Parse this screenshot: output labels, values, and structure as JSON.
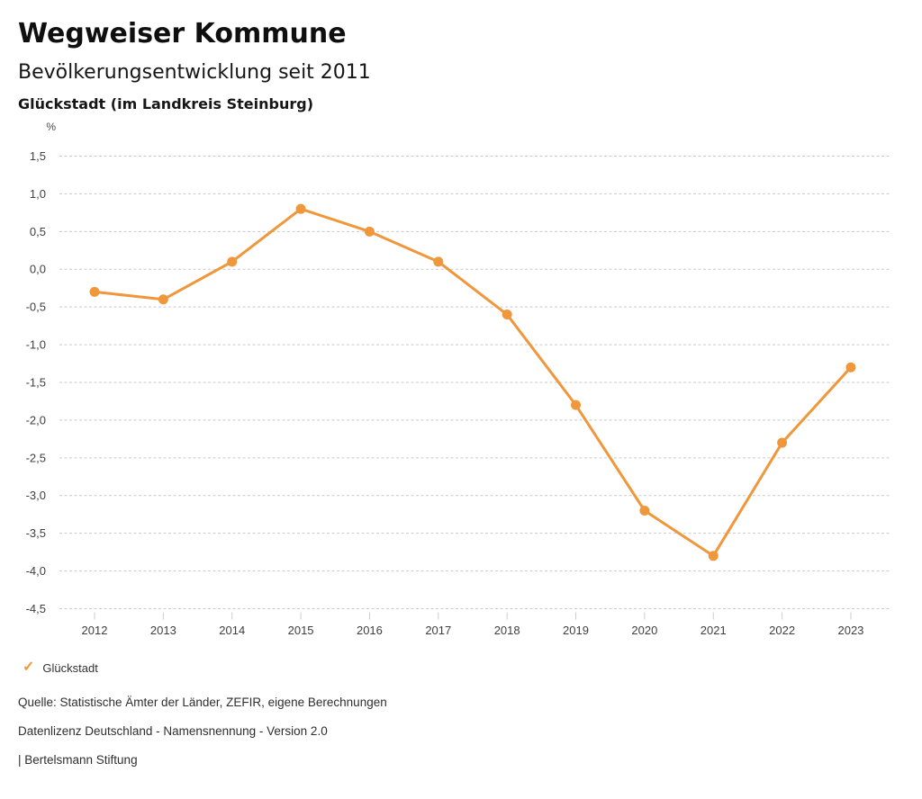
{
  "header": {
    "title": "Wegweiser Kommune",
    "subtitle": "Bevölkerungsentwicklung seit 2011",
    "location": "Glückstadt (im Landkreis Steinburg)"
  },
  "chart_data": {
    "type": "line",
    "title": "Bevölkerungsentwicklung seit 2011",
    "unit_label": "%",
    "x": [
      2012,
      2013,
      2014,
      2015,
      2016,
      2017,
      2018,
      2019,
      2020,
      2021,
      2022,
      2023
    ],
    "series": [
      {
        "name": "Glückstadt",
        "values": [
          -0.3,
          -0.4,
          0.1,
          0.8,
          0.5,
          0.1,
          -0.6,
          -1.8,
          -3.2,
          -3.8,
          -2.3,
          -1.3
        ]
      }
    ],
    "ylim": [
      -4.5,
      1.5
    ],
    "ytick_step": 0.5,
    "grid": "horizontal-dotted",
    "legend_position": "bottom-left",
    "decimal_separator": ",",
    "colors": {
      "series": "#F0973C",
      "grid": "#c9c9c9",
      "tick": "#cccccc",
      "axis_text": "#3f3f3f"
    }
  },
  "legend": {
    "label": "Glückstadt",
    "check_icon": "✓",
    "check_color": "#F0973C"
  },
  "footer": {
    "source": "Quelle: Statistische Ämter der Länder, ZEFIR, eigene Berechnungen",
    "license": "Datenlizenz Deutschland - Namensnennung - Version 2.0",
    "attribution": "| Bertelsmann Stiftung"
  }
}
